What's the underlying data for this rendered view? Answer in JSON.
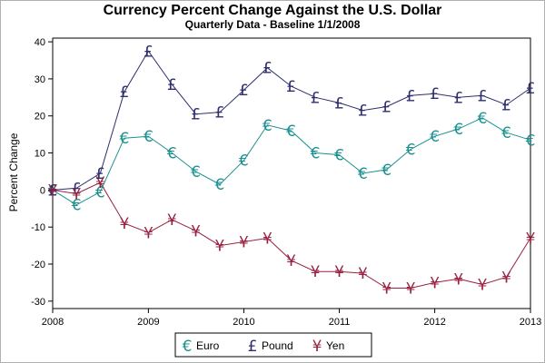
{
  "chart_data": {
    "type": "line",
    "title": "Currency Percent Change Against the U.S. Dollar",
    "subtitle": "Quarterly Data - Baseline 1/1/2008",
    "xlabel": "",
    "ylabel": "Percent Change",
    "xlim": [
      "2008-01-01",
      "2013-01-01"
    ],
    "x_ticks": [
      "2008",
      "2009",
      "2010",
      "2011",
      "2012",
      "2013"
    ],
    "ylim": [
      -32,
      41
    ],
    "y_ticks": [
      -30,
      -20,
      -10,
      0,
      10,
      20,
      30,
      40
    ],
    "grid": false,
    "legend_position": "bottom",
    "x": [
      "2008-01-01",
      "2008-04-01",
      "2008-07-01",
      "2008-10-01",
      "2009-01-01",
      "2009-04-01",
      "2009-07-01",
      "2009-10-01",
      "2010-01-01",
      "2010-04-01",
      "2010-07-01",
      "2010-10-01",
      "2011-01-01",
      "2011-04-01",
      "2011-07-01",
      "2011-10-01",
      "2012-01-01",
      "2012-04-01",
      "2012-07-01",
      "2012-10-01",
      "2013-01-01"
    ],
    "series": [
      {
        "name": "Euro",
        "marker": "€",
        "color": "#1a9090",
        "values": [
          0,
          -4,
          -0.5,
          14,
          14.5,
          10,
          5,
          1.5,
          8,
          17.5,
          16,
          10,
          9.5,
          4.5,
          5.5,
          11,
          14.5,
          16.5,
          19.5,
          15.5,
          13.5
        ]
      },
      {
        "name": "Pound",
        "marker": "£",
        "color": "#2e2e6e",
        "values": [
          0,
          0.5,
          4.5,
          26.5,
          37.5,
          28.5,
          20.5,
          21,
          27,
          33,
          28,
          25,
          23.5,
          21.5,
          22.5,
          25.5,
          26,
          25,
          25.5,
          23,
          27.5
        ]
      },
      {
        "name": "Yen",
        "marker": "¥",
        "color": "#9a2040",
        "values": [
          0,
          -1,
          2,
          -9,
          -11.5,
          -8,
          -11,
          -15,
          -14,
          -13,
          -19,
          -22,
          -22,
          -22.5,
          -26.5,
          -26.5,
          -25,
          -24,
          -25.5,
          -23.5,
          -13
        ]
      }
    ]
  }
}
